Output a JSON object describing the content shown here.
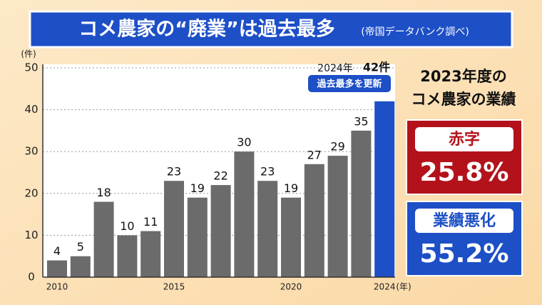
{
  "chart_data": {
    "type": "bar",
    "title": "コメ農家の“廃業”は過去最多",
    "subtitle": "(帝国データバンク調べ)",
    "y_label": "(件)",
    "x_label": "(年)",
    "categories": [
      "2010",
      null,
      null,
      null,
      null,
      "2015",
      null,
      null,
      null,
      null,
      "2020",
      null,
      null,
      null,
      "2024"
    ],
    "values": [
      4,
      5,
      18,
      10,
      11,
      23,
      19,
      22,
      30,
      23,
      19,
      27,
      29,
      35,
      42
    ],
    "value_labels": [
      "4",
      "5",
      "18",
      "10",
      "11",
      "23",
      "19",
      "22",
      "30",
      "23",
      "19",
      "27",
      "29",
      "35",
      "42件"
    ],
    "color": "#6b6b6b",
    "highlight_color": "#1d4fc6",
    "annotations": [
      "2024年",
      "過去最多を更新"
    ],
    "ylim": [
      0,
      50
    ],
    "yticks": [
      0,
      10,
      20,
      30,
      40,
      50
    ],
    "grid": true
  },
  "panel": {
    "heading": [
      "2023年度の",
      "コメ農家の業績"
    ],
    "items": [
      {
        "label": "赤字",
        "value": "25.8%",
        "color": "#b3121b"
      },
      {
        "label": "業績悪化",
        "value": "55.2%",
        "color": "#1d4fc6"
      }
    ]
  }
}
